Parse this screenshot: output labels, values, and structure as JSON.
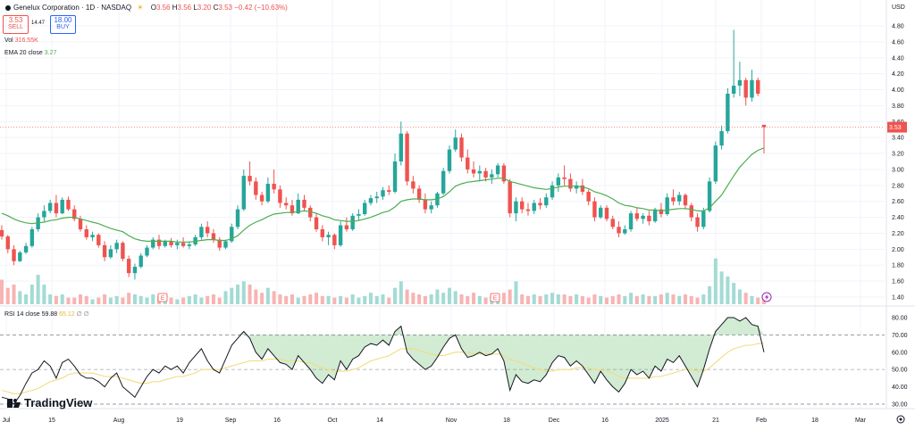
{
  "header": {
    "title": "Genelux Corporation · 1D · NASDAQ",
    "ohlc": {
      "open_label": "O",
      "open": "3.56",
      "high_label": "H",
      "high": "3.56",
      "low_label": "L",
      "low": "3.20",
      "close_label": "C",
      "close": "3.53",
      "change": "−0.42 (−10.63%)"
    },
    "sell_price": "3.53",
    "sell_label": "SELL",
    "spread": "14.47",
    "buy_price": "18.00",
    "buy_label": "BUY",
    "vol_label": "Vol",
    "vol_value": "316.55K",
    "ema_label": "EMA 20 close",
    "ema_value": "3.27",
    "rsi_label": "RSI 14 close",
    "rsi_value": "59.88",
    "rsi_ma": "65.12",
    "rsi_extra": "∅ ∅"
  },
  "branding": {
    "logo_text": "TradingView"
  },
  "colors": {
    "up": "#26a69a",
    "down": "#ef5350",
    "ema": "#4caf50",
    "rsi": "#131722",
    "rsi_ma": "#f0dd80"
  },
  "chart_data": {
    "type": "candlestick",
    "currency": "USD",
    "price_axis": {
      "ticks": [
        "4.80",
        "4.60",
        "4.40",
        "4.20",
        "4.00",
        "3.80",
        "3.60",
        "3.40",
        "3.20",
        "3.00",
        "2.80",
        "2.60",
        "2.40",
        "2.20",
        "2.00",
        "1.80",
        "1.60",
        "1.40"
      ],
      "range": [
        1.3,
        4.9
      ],
      "last": "3.53"
    },
    "x_axis": {
      "ticks": [
        "Jul",
        "15",
        "Aug",
        "19",
        "Sep",
        "16",
        "Oct",
        "14",
        "Nov",
        "18",
        "Dec",
        "16",
        "2025",
        "21",
        "Feb",
        "18",
        "Mar"
      ]
    },
    "rsi_axis": {
      "ticks": [
        "80.00",
        "70.00",
        "60.00",
        "50.00",
        "40.00",
        "30.00"
      ],
      "range": [
        28,
        82
      ],
      "levels": [
        70,
        50,
        30
      ]
    },
    "event_markers": [
      "E",
      "E"
    ],
    "candles": [
      [
        2.24,
        2.3,
        2.12,
        2.16
      ],
      [
        2.16,
        2.18,
        1.95,
        2.0
      ],
      [
        2.0,
        2.05,
        1.8,
        1.85
      ],
      [
        1.85,
        1.98,
        1.84,
        1.96
      ],
      [
        1.96,
        2.08,
        1.94,
        2.04
      ],
      [
        2.04,
        2.28,
        2.02,
        2.25
      ],
      [
        2.25,
        2.45,
        2.22,
        2.4
      ],
      [
        2.4,
        2.55,
        2.35,
        2.48
      ],
      [
        2.48,
        2.62,
        2.45,
        2.58
      ],
      [
        2.58,
        2.68,
        2.4,
        2.45
      ],
      [
        2.45,
        2.65,
        2.44,
        2.62
      ],
      [
        2.62,
        2.66,
        2.48,
        2.5
      ],
      [
        2.5,
        2.55,
        2.35,
        2.38
      ],
      [
        2.38,
        2.42,
        2.22,
        2.25
      ],
      [
        2.25,
        2.3,
        2.12,
        2.15
      ],
      [
        2.15,
        2.22,
        2.1,
        2.18
      ],
      [
        2.18,
        2.2,
        2.02,
        2.05
      ],
      [
        2.05,
        2.1,
        1.85,
        1.9
      ],
      [
        1.9,
        2.05,
        1.88,
        2.0
      ],
      [
        2.0,
        2.12,
        1.95,
        2.08
      ],
      [
        2.08,
        2.1,
        1.85,
        1.88
      ],
      [
        1.88,
        1.92,
        1.65,
        1.7
      ],
      [
        1.7,
        1.82,
        1.62,
        1.78
      ],
      [
        1.78,
        1.95,
        1.76,
        1.92
      ],
      [
        1.92,
        2.05,
        1.9,
        2.02
      ],
      [
        2.02,
        2.15,
        2.0,
        2.12
      ],
      [
        2.12,
        2.18,
        2.0,
        2.04
      ],
      [
        2.04,
        2.12,
        2.02,
        2.1
      ],
      [
        2.1,
        2.14,
        2.02,
        2.05
      ],
      [
        2.05,
        2.12,
        2.0,
        2.08
      ],
      [
        2.08,
        2.15,
        2.02,
        2.04
      ],
      [
        2.04,
        2.1,
        2.0,
        2.06
      ],
      [
        2.06,
        2.18,
        2.04,
        2.15
      ],
      [
        2.15,
        2.32,
        2.12,
        2.28
      ],
      [
        2.28,
        2.35,
        2.15,
        2.2
      ],
      [
        2.2,
        2.25,
        2.08,
        2.12
      ],
      [
        2.12,
        2.15,
        1.98,
        2.02
      ],
      [
        2.02,
        2.12,
        2.0,
        2.1
      ],
      [
        2.1,
        2.32,
        2.08,
        2.28
      ],
      [
        2.28,
        2.55,
        2.25,
        2.5
      ],
      [
        2.5,
        3.0,
        2.48,
        2.92
      ],
      [
        2.92,
        3.1,
        2.8,
        2.85
      ],
      [
        2.85,
        2.9,
        2.62,
        2.68
      ],
      [
        2.68,
        2.72,
        2.55,
        2.6
      ],
      [
        2.6,
        2.9,
        2.58,
        2.82
      ],
      [
        2.82,
        3.0,
        2.7,
        2.75
      ],
      [
        2.75,
        2.8,
        2.52,
        2.58
      ],
      [
        2.58,
        2.65,
        2.5,
        2.55
      ],
      [
        2.55,
        2.62,
        2.42,
        2.45
      ],
      [
        2.45,
        2.7,
        2.44,
        2.62
      ],
      [
        2.62,
        2.68,
        2.48,
        2.52
      ],
      [
        2.52,
        2.55,
        2.35,
        2.4
      ],
      [
        2.4,
        2.45,
        2.22,
        2.25
      ],
      [
        2.25,
        2.3,
        2.1,
        2.15
      ],
      [
        2.15,
        2.22,
        2.05,
        2.18
      ],
      [
        2.18,
        2.2,
        2.0,
        2.05
      ],
      [
        2.05,
        2.35,
        2.03,
        2.3
      ],
      [
        2.3,
        2.4,
        2.22,
        2.25
      ],
      [
        2.25,
        2.45,
        2.23,
        2.42
      ],
      [
        2.42,
        2.5,
        2.36,
        2.44
      ],
      [
        2.44,
        2.62,
        2.42,
        2.58
      ],
      [
        2.58,
        2.68,
        2.55,
        2.64
      ],
      [
        2.64,
        2.72,
        2.58,
        2.66
      ],
      [
        2.66,
        2.78,
        2.62,
        2.74
      ],
      [
        2.74,
        2.8,
        2.68,
        2.72
      ],
      [
        2.72,
        3.2,
        2.7,
        3.1
      ],
      [
        3.1,
        3.6,
        3.05,
        3.45
      ],
      [
        3.45,
        3.48,
        2.8,
        2.85
      ],
      [
        2.85,
        2.92,
        2.7,
        2.76
      ],
      [
        2.76,
        2.8,
        2.58,
        2.62
      ],
      [
        2.62,
        2.7,
        2.45,
        2.5
      ],
      [
        2.5,
        2.6,
        2.45,
        2.55
      ],
      [
        2.55,
        2.72,
        2.52,
        2.7
      ],
      [
        2.7,
        3.02,
        2.68,
        2.98
      ],
      [
        2.98,
        3.3,
        2.95,
        3.25
      ],
      [
        3.25,
        3.5,
        3.22,
        3.4
      ],
      [
        3.4,
        3.45,
        3.1,
        3.15
      ],
      [
        3.15,
        3.25,
        2.95,
        3.0
      ],
      [
        3.0,
        3.1,
        2.9,
        2.95
      ],
      [
        2.95,
        3.05,
        2.85,
        2.98
      ],
      [
        2.98,
        3.02,
        2.85,
        2.9
      ],
      [
        2.9,
        3.0,
        2.82,
        2.94
      ],
      [
        2.94,
        3.08,
        2.9,
        3.05
      ],
      [
        3.05,
        3.08,
        2.82,
        2.85
      ],
      [
        2.85,
        2.88,
        2.4,
        2.45
      ],
      [
        2.45,
        2.65,
        2.35,
        2.6
      ],
      [
        2.6,
        2.65,
        2.45,
        2.5
      ],
      [
        2.5,
        2.58,
        2.42,
        2.48
      ],
      [
        2.48,
        2.62,
        2.44,
        2.58
      ],
      [
        2.58,
        2.64,
        2.5,
        2.55
      ],
      [
        2.55,
        2.7,
        2.52,
        2.65
      ],
      [
        2.65,
        2.85,
        2.62,
        2.8
      ],
      [
        2.8,
        2.95,
        2.72,
        2.9
      ],
      [
        2.9,
        3.05,
        2.8,
        2.88
      ],
      [
        2.88,
        2.95,
        2.72,
        2.76
      ],
      [
        2.76,
        2.85,
        2.7,
        2.8
      ],
      [
        2.8,
        2.88,
        2.68,
        2.72
      ],
      [
        2.72,
        2.75,
        2.55,
        2.6
      ],
      [
        2.6,
        2.65,
        2.35,
        2.4
      ],
      [
        2.4,
        2.55,
        2.38,
        2.52
      ],
      [
        2.52,
        2.55,
        2.35,
        2.38
      ],
      [
        2.38,
        2.42,
        2.25,
        2.28
      ],
      [
        2.28,
        2.35,
        2.15,
        2.2
      ],
      [
        2.2,
        2.3,
        2.18,
        2.25
      ],
      [
        2.25,
        2.48,
        2.22,
        2.45
      ],
      [
        2.45,
        2.52,
        2.35,
        2.38
      ],
      [
        2.38,
        2.45,
        2.32,
        2.42
      ],
      [
        2.42,
        2.48,
        2.3,
        2.35
      ],
      [
        2.35,
        2.52,
        2.33,
        2.5
      ],
      [
        2.5,
        2.58,
        2.4,
        2.44
      ],
      [
        2.44,
        2.7,
        2.42,
        2.65
      ],
      [
        2.65,
        2.75,
        2.55,
        2.6
      ],
      [
        2.6,
        2.72,
        2.55,
        2.68
      ],
      [
        2.68,
        2.7,
        2.5,
        2.55
      ],
      [
        2.55,
        2.58,
        2.35,
        2.4
      ],
      [
        2.4,
        2.45,
        2.22,
        2.28
      ],
      [
        2.28,
        2.52,
        2.25,
        2.48
      ],
      [
        2.48,
        2.9,
        2.46,
        2.85
      ],
      [
        2.85,
        3.35,
        2.82,
        3.3
      ],
      [
        3.3,
        3.55,
        3.25,
        3.48
      ],
      [
        3.48,
        4.02,
        3.45,
        3.95
      ],
      [
        3.95,
        4.75,
        3.9,
        4.05
      ],
      [
        4.05,
        4.35,
        3.92,
        4.12
      ],
      [
        4.12,
        4.15,
        3.8,
        3.9
      ],
      [
        3.9,
        4.25,
        3.85,
        4.12
      ],
      [
        4.12,
        4.15,
        3.92,
        3.95
      ],
      [
        3.56,
        3.56,
        3.2,
        3.53
      ]
    ],
    "ema": [
      2.45,
      2.42,
      2.38,
      2.35,
      2.33,
      2.32,
      2.33,
      2.34,
      2.36,
      2.37,
      2.39,
      2.4,
      2.4,
      2.38,
      2.36,
      2.34,
      2.32,
      2.29,
      2.26,
      2.24,
      2.22,
      2.17,
      2.13,
      2.11,
      2.1,
      2.1,
      2.1,
      2.1,
      2.1,
      2.09,
      2.09,
      2.09,
      2.1,
      2.11,
      2.12,
      2.12,
      2.11,
      2.11,
      2.13,
      2.17,
      2.24,
      2.3,
      2.34,
      2.37,
      2.41,
      2.44,
      2.45,
      2.46,
      2.46,
      2.47,
      2.48,
      2.47,
      2.45,
      2.42,
      2.4,
      2.37,
      2.36,
      2.35,
      2.35,
      2.36,
      2.38,
      2.4,
      2.43,
      2.46,
      2.48,
      2.53,
      2.6,
      2.62,
      2.63,
      2.63,
      2.62,
      2.62,
      2.63,
      2.66,
      2.72,
      2.79,
      2.82,
      2.84,
      2.85,
      2.86,
      2.87,
      2.88,
      2.89,
      2.89,
      2.85,
      2.83,
      2.81,
      2.79,
      2.77,
      2.76,
      2.75,
      2.76,
      2.78,
      2.79,
      2.79,
      2.79,
      2.78,
      2.76,
      2.72,
      2.7,
      2.67,
      2.63,
      2.58,
      2.55,
      2.54,
      2.52,
      2.51,
      2.49,
      2.49,
      2.48,
      2.49,
      2.5,
      2.51,
      2.51,
      2.5,
      2.48,
      2.48,
      2.52,
      2.6,
      2.68,
      2.8,
      2.92,
      3.03,
      3.11,
      3.19,
      3.24,
      3.27
    ],
    "volume": [
      0.15,
      0.1,
      0.12,
      0.08,
      0.06,
      0.12,
      0.18,
      0.12,
      0.06,
      0.05,
      0.06,
      0.04,
      0.04,
      0.06,
      0.05,
      0.03,
      0.04,
      0.06,
      0.04,
      0.05,
      0.04,
      0.07,
      0.06,
      0.05,
      0.04,
      0.06,
      0.05,
      0.03,
      0.04,
      0.03,
      0.04,
      0.05,
      0.06,
      0.04,
      0.05,
      0.06,
      0.04,
      0.08,
      0.1,
      0.12,
      0.14,
      0.12,
      0.09,
      0.07,
      0.1,
      0.08,
      0.06,
      0.05,
      0.06,
      0.04,
      0.05,
      0.06,
      0.07,
      0.05,
      0.05,
      0.04,
      0.05,
      0.04,
      0.06,
      0.04,
      0.05,
      0.07,
      0.05,
      0.06,
      0.04,
      0.1,
      0.14,
      0.09,
      0.07,
      0.06,
      0.05,
      0.06,
      0.09,
      0.07,
      0.1,
      0.08,
      0.06,
      0.05,
      0.07,
      0.05,
      0.04,
      0.05,
      0.06,
      0.07,
      0.09,
      0.14,
      0.06,
      0.05,
      0.06,
      0.05,
      0.06,
      0.07,
      0.06,
      0.06,
      0.05,
      0.06,
      0.05,
      0.04,
      0.06,
      0.05,
      0.04,
      0.05,
      0.06,
      0.05,
      0.07,
      0.05,
      0.06,
      0.05,
      0.05,
      0.06,
      0.07,
      0.06,
      0.05,
      0.06,
      0.05,
      0.04,
      0.06,
      0.11,
      0.28,
      0.2,
      0.17,
      0.13,
      0.09,
      0.07,
      0.05,
      0.04,
      0.05
    ],
    "rsi": [
      34,
      33,
      30,
      35,
      42,
      48,
      50,
      55,
      52,
      45,
      54,
      56,
      52,
      47,
      45,
      45,
      43,
      40,
      45,
      48,
      40,
      37,
      34,
      40,
      46,
      50,
      48,
      52,
      50,
      52,
      48,
      54,
      58,
      62,
      55,
      50,
      48,
      56,
      64,
      68,
      72,
      68,
      60,
      56,
      62,
      58,
      54,
      53,
      50,
      58,
      54,
      50,
      45,
      42,
      47,
      44,
      55,
      50,
      56,
      58,
      63,
      65,
      64,
      67,
      64,
      72,
      75,
      60,
      56,
      53,
      50,
      52,
      57,
      63,
      68,
      70,
      62,
      57,
      58,
      60,
      58,
      59,
      62,
      55,
      38,
      47,
      43,
      42,
      44,
      43,
      47,
      54,
      58,
      57,
      52,
      55,
      52,
      47,
      42,
      49,
      44,
      40,
      37,
      42,
      50,
      47,
      49,
      45,
      52,
      49,
      56,
      54,
      58,
      52,
      46,
      40,
      50,
      62,
      72,
      76,
      80,
      80,
      78,
      80,
      76,
      75,
      60
    ],
    "rsi_ma": [
      38,
      37,
      36,
      36,
      37,
      38,
      39,
      41,
      43,
      44,
      45,
      47,
      48,
      48,
      48,
      48,
      47,
      46,
      46,
      46,
      45,
      44,
      43,
      42,
      42,
      43,
      43,
      44,
      45,
      46,
      46,
      47,
      48,
      50,
      50,
      50,
      50,
      51,
      52,
      53,
      54,
      55,
      55,
      55,
      56,
      56,
      56,
      55,
      55,
      55,
      54,
      54,
      52,
      51,
      50,
      49,
      49,
      49,
      50,
      51,
      53,
      55,
      56,
      57,
      58,
      60,
      62,
      62,
      62,
      61,
      60,
      59,
      58,
      58,
      59,
      60,
      60,
      60,
      59,
      59,
      59,
      59,
      59,
      58,
      56,
      55,
      54,
      52,
      51,
      50,
      49,
      49,
      50,
      50,
      50,
      51,
      51,
      51,
      50,
      50,
      49,
      48,
      46,
      45,
      45,
      45,
      45,
      45,
      46,
      46,
      47,
      48,
      49,
      50,
      50,
      49,
      49,
      51,
      54,
      57,
      60,
      62,
      63,
      64,
      64,
      65,
      65
    ]
  }
}
